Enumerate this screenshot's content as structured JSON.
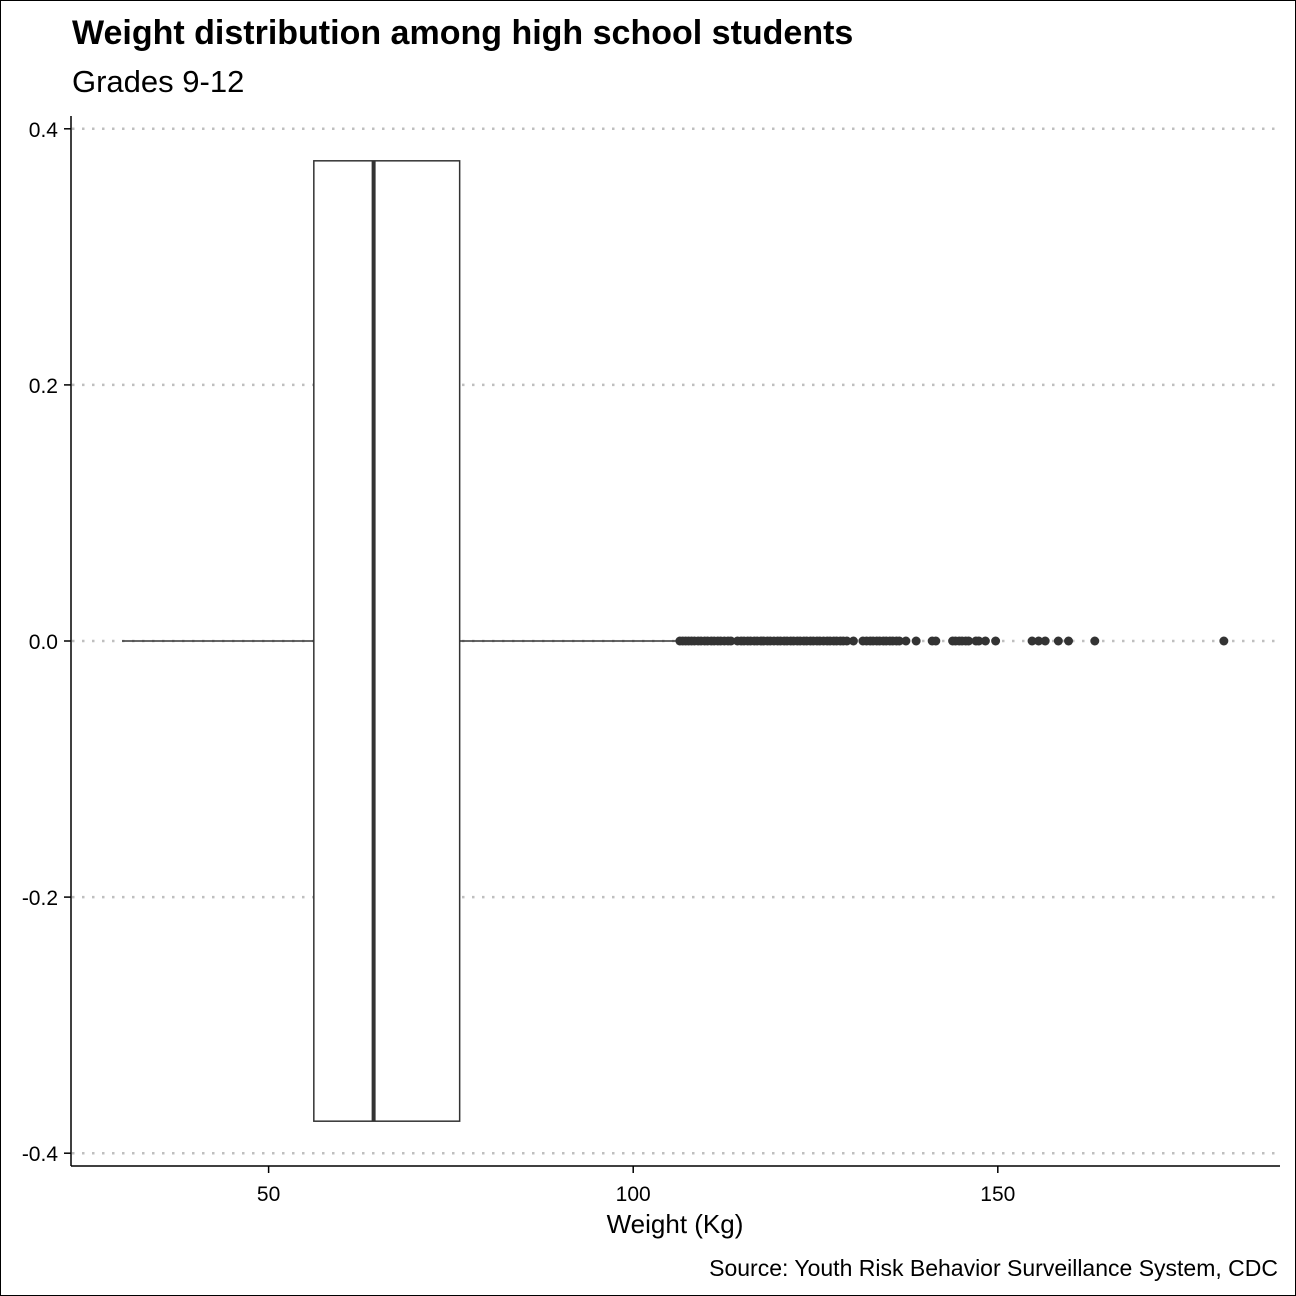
{
  "chart_data": {
    "type": "boxplot",
    "title": "Weight distribution among high school students",
    "subtitle": "Grades 9-12",
    "xlabel": "Weight (Kg)",
    "ylabel": "",
    "caption": "Source: Youth Risk Behavior Surveillance System, CDC",
    "xlim": [
      22.9,
      188.7
    ],
    "ylim": [
      -0.41,
      0.41
    ],
    "x_ticks": [
      50,
      100,
      150
    ],
    "x_tick_labels": [
      "50",
      "100",
      "150"
    ],
    "y_ticks": [
      -0.4,
      -0.2,
      0.0,
      0.2,
      0.4
    ],
    "y_tick_labels": [
      "-0.4",
      "-0.2",
      "0.0",
      "0.2",
      "0.4"
    ],
    "grid": "horizontal dotted",
    "box": {
      "whisker_low": 29.9,
      "q1": 56.2,
      "median": 64.4,
      "q3": 76.2,
      "whisker_high": 106.1,
      "box_half_height": 0.375
    },
    "outliers": [
      106.4,
      106.8,
      107.2,
      107.6,
      108.0,
      108.4,
      108.9,
      109.3,
      109.8,
      110.2,
      110.7,
      111.1,
      111.6,
      112.0,
      112.5,
      113.0,
      113.4,
      114.3,
      114.8,
      115.2,
      115.7,
      116.1,
      116.6,
      117.0,
      117.5,
      117.9,
      118.4,
      118.8,
      119.3,
      119.8,
      120.2,
      120.7,
      121.1,
      121.6,
      122.0,
      122.5,
      122.9,
      123.4,
      123.8,
      124.3,
      124.7,
      125.2,
      125.6,
      126.1,
      126.6,
      127.0,
      127.5,
      127.9,
      128.4,
      128.8,
      129.3,
      130.2,
      131.5,
      132.0,
      132.5,
      132.9,
      133.4,
      133.8,
      134.3,
      134.7,
      135.2,
      135.6,
      136.1,
      136.5,
      137.4,
      138.8,
      141.0,
      141.5,
      143.8,
      144.2,
      144.7,
      145.1,
      145.6,
      146.0,
      147.0,
      147.4,
      148.3,
      149.7,
      154.7,
      155.6,
      156.5,
      158.3,
      159.7,
      163.3,
      181.0
    ],
    "colors": {
      "box_line": "#333333",
      "points": "#333333",
      "grid": "#bfbfbf"
    }
  }
}
